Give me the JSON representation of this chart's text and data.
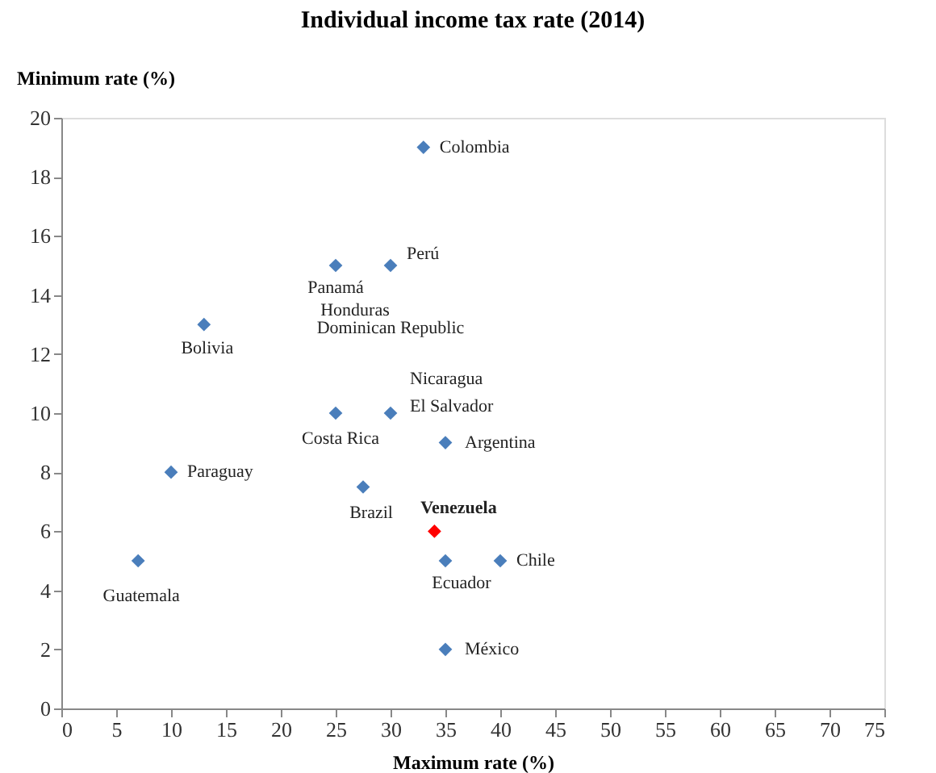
{
  "chart_data": {
    "type": "scatter",
    "title": "Individual income tax rate (2014)",
    "xlabel": "Maximum rate (%)",
    "ylabel": "Minimum rate (%)",
    "xlim": [
      0,
      75
    ],
    "xticks": [
      0,
      5,
      10,
      15,
      20,
      25,
      30,
      35,
      40,
      45,
      50,
      55,
      60,
      65,
      70,
      75
    ],
    "ylim": [
      0,
      20
    ],
    "yticks": [
      0,
      2,
      4,
      6,
      8,
      10,
      12,
      14,
      16,
      18,
      20
    ],
    "grid": false,
    "marker": "diamond",
    "series": [
      {
        "color": "#4a7ebb",
        "x": [
          33,
          30,
          25,
          13,
          30,
          25,
          35,
          10,
          27.5,
          35,
          40,
          7,
          35
        ],
        "values": [
          19,
          15,
          15,
          13,
          10,
          10,
          9,
          8,
          7.5,
          5,
          5,
          5,
          2
        ]
      },
      {
        "color": "#ff0000",
        "x": [
          34
        ],
        "values": [
          6
        ]
      }
    ],
    "annotations": [
      {
        "text": "Colombia",
        "x": 33,
        "y": 19
      },
      {
        "text": "Perú",
        "x": 30,
        "y": 15
      },
      {
        "text": "Panamá",
        "x": 25,
        "y": 15
      },
      {
        "text": "Honduras",
        "x": 25,
        "y": 15
      },
      {
        "text": "Dominican Republic",
        "x": 30,
        "y": 15
      },
      {
        "text": "Bolivia",
        "x": 13,
        "y": 13
      },
      {
        "text": "Nicaragua",
        "x": 30,
        "y": 10
      },
      {
        "text": "El Salvador",
        "x": 30,
        "y": 10
      },
      {
        "text": "Costa Rica",
        "x": 25,
        "y": 10
      },
      {
        "text": "Argentina",
        "x": 35,
        "y": 9
      },
      {
        "text": "Paraguay",
        "x": 10,
        "y": 8
      },
      {
        "text": "Brazil",
        "x": 27.5,
        "y": 7.5
      },
      {
        "text": "Venezuela",
        "x": 34,
        "y": 6
      },
      {
        "text": "Ecuador",
        "x": 35,
        "y": 5
      },
      {
        "text": "Chile",
        "x": 40,
        "y": 5
      },
      {
        "text": "Guatemala",
        "x": 7,
        "y": 5
      },
      {
        "text": "México",
        "x": 35,
        "y": 2
      }
    ]
  }
}
